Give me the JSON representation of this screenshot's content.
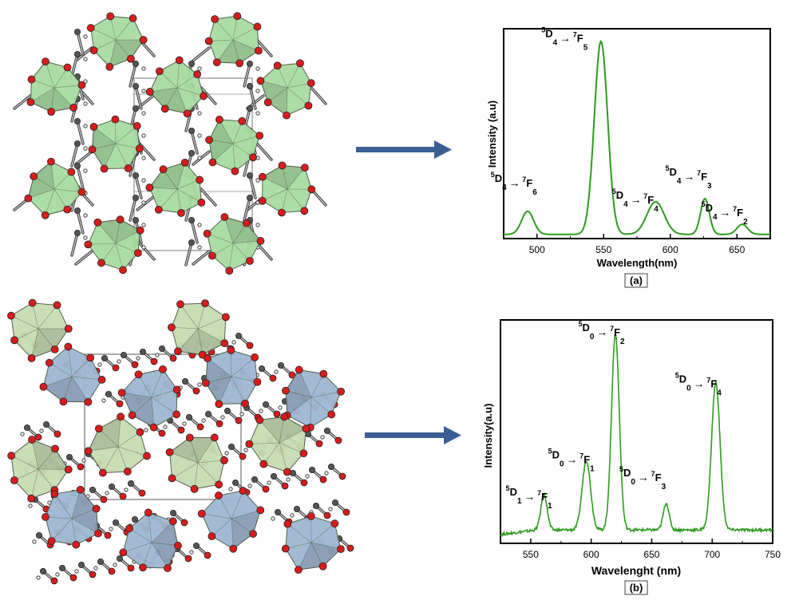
{
  "colors": {
    "spectrum": "#2e9a1e",
    "arrow": "#3b5f94",
    "tb_polyhedron": "#a8dca2",
    "eu_polyhedron_blue": "#9fb7d2",
    "eu_polyhedron_green": "#c7dcb3",
    "oxygen": "#d81c1c",
    "carbon": "#555555",
    "hydrogen": "#eeeeee",
    "bond": "#8a8a8a"
  },
  "panels": [
    {
      "id": "a",
      "label": "(a)",
      "structure_icon": "tb-coordination-network-icon",
      "arrow_icon": "right-arrow-icon"
    },
    {
      "id": "b",
      "label": "(b)",
      "structure_icon": "eu-coordination-network-icon",
      "arrow_icon": "right-arrow-icon"
    }
  ],
  "chart_data": [
    {
      "type": "line",
      "panel": "a",
      "xlabel": "Wavelength(nm)",
      "ylabel": "Intensity (a.u)",
      "xlim": [
        475,
        675
      ],
      "ylim": [
        0,
        1
      ],
      "xticks": [
        500,
        550,
        600,
        650
      ],
      "y_tick_labels": false,
      "baseline": 0.02,
      "peaks": [
        {
          "center": 493,
          "height": 0.11,
          "width": 4.5
        },
        {
          "center": 548,
          "height": 0.92,
          "width": 5
        },
        {
          "center": 589,
          "height": 0.155,
          "width": 6.5
        },
        {
          "center": 626,
          "height": 0.17,
          "width": 3.3
        },
        {
          "center": 654,
          "height": 0.048,
          "width": 4
        }
      ],
      "annotations": [
        {
          "parts": [
            [
              "5",
              "sup"
            ],
            [
              "D",
              "t"
            ],
            [
              "4",
              "sub"
            ]
          ],
          "arrow": true,
          "parts2": [
            [
              "7",
              "sup"
            ],
            [
              "F",
              "t"
            ],
            [
              "6",
              "sub"
            ]
          ],
          "x": 494,
          "y": 0.27
        },
        {
          "parts": [
            [
              "5",
              "sup"
            ],
            [
              "D",
              "t"
            ],
            [
              "4",
              "sub"
            ]
          ],
          "arrow": true,
          "parts2": [
            [
              "7",
              "sup"
            ],
            [
              "F",
              "t"
            ],
            [
              "5",
              "sub"
            ]
          ],
          "x": 532,
          "y": 0.96
        },
        {
          "parts": [
            [
              "5",
              "sup"
            ],
            [
              "D",
              "t"
            ],
            [
              "4",
              "sub"
            ]
          ],
          "arrow": true,
          "parts2": [
            [
              "7",
              "sup"
            ],
            [
              "F",
              "t"
            ],
            [
              "4",
              "sub"
            ]
          ],
          "x": 585,
          "y": 0.19
        },
        {
          "parts": [
            [
              "5",
              "sup"
            ],
            [
              "D",
              "t"
            ],
            [
              "4",
              "sub"
            ]
          ],
          "arrow": true,
          "parts2": [
            [
              "7",
              "sup"
            ],
            [
              "F",
              "t"
            ],
            [
              "3",
              "sub"
            ]
          ],
          "x": 625,
          "y": 0.3
        },
        {
          "parts": [
            [
              "5",
              "sup"
            ],
            [
              "D",
              "t"
            ],
            [
              "4",
              "sub"
            ]
          ],
          "arrow": true,
          "parts2": [
            [
              "7",
              "sup"
            ],
            [
              "F",
              "t"
            ],
            [
              "2",
              "sub"
            ]
          ],
          "x": 652,
          "y": 0.13
        }
      ]
    },
    {
      "type": "line",
      "panel": "b",
      "xlabel": "Wavelenght (nm)",
      "ylabel": "Intensity(a.u)",
      "xlim": [
        525,
        750
      ],
      "ylim": [
        0,
        1
      ],
      "xticks": [
        550,
        600,
        650,
        700,
        750
      ],
      "y_tick_labels": false,
      "baseline": 0.06,
      "noisy": true,
      "peaks": [
        {
          "center": 561,
          "height": 0.16,
          "width": 2.6
        },
        {
          "center": 596,
          "height": 0.31,
          "width": 3.5
        },
        {
          "center": 620,
          "height": 0.88,
          "width": 3.2
        },
        {
          "center": 662,
          "height": 0.12,
          "width": 2.4
        },
        {
          "center": 703,
          "height": 0.66,
          "width": 3.5
        }
      ],
      "annotations": [
        {
          "parts": [
            [
              "5",
              "sup"
            ],
            [
              "D",
              "t"
            ],
            [
              "1",
              "sub"
            ]
          ],
          "arrow": true,
          "parts2": [
            [
              "7",
              "sup"
            ],
            [
              "F",
              "t"
            ],
            [
              "1",
              "sub"
            ]
          ],
          "x": 561,
          "y": 0.215
        },
        {
          "parts": [
            [
              "5",
              "sup"
            ],
            [
              "D",
              "t"
            ],
            [
              "0",
              "sub"
            ]
          ],
          "arrow": true,
          "parts2": [
            [
              "7",
              "sup"
            ],
            [
              "F",
              "t"
            ],
            [
              "1",
              "sub"
            ]
          ],
          "x": 596,
          "y": 0.38
        },
        {
          "parts": [
            [
              "5",
              "sup"
            ],
            [
              "D",
              "t"
            ],
            [
              "0",
              "sub"
            ]
          ],
          "arrow": true,
          "parts2": [
            [
              "7",
              "sup"
            ],
            [
              "F",
              "t"
            ],
            [
              "2",
              "sub"
            ]
          ],
          "x": 621,
          "y": 0.95
        },
        {
          "parts": [
            [
              "5",
              "sup"
            ],
            [
              "D",
              "t"
            ],
            [
              "0",
              "sub"
            ]
          ],
          "arrow": true,
          "parts2": [
            [
              "7",
              "sup"
            ],
            [
              "F",
              "t"
            ],
            [
              "3",
              "sub"
            ]
          ],
          "x": 655,
          "y": 0.3
        },
        {
          "parts": [
            [
              "5",
              "sup"
            ],
            [
              "D",
              "t"
            ],
            [
              "0",
              "sub"
            ]
          ],
          "arrow": true,
          "parts2": [
            [
              "7",
              "sup"
            ],
            [
              "F",
              "t"
            ],
            [
              "4",
              "sub"
            ]
          ],
          "x": 701,
          "y": 0.72
        }
      ]
    }
  ]
}
